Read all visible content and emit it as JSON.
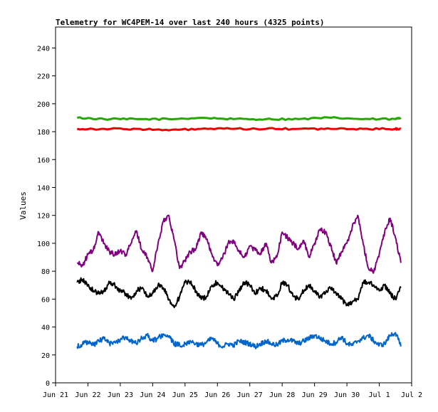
{
  "chart_data": {
    "type": "line",
    "title": "Telemetry for WC4PEM-14 over last 240 hours (4325 points)",
    "xlabel": "",
    "ylabel": "Values",
    "ylim": [
      0,
      255
    ],
    "yticks": [
      0,
      20,
      40,
      60,
      80,
      100,
      120,
      140,
      160,
      180,
      200,
      220,
      240
    ],
    "x_range": [
      "2023-06-21",
      "2023-07-02"
    ],
    "xticks": [
      {
        "date": "2023-06-21",
        "label": "Jun 21"
      },
      {
        "date": "2023-06-22",
        "label": "Jun 22"
      },
      {
        "date": "2023-06-23",
        "label": "Jun 23"
      },
      {
        "date": "2023-06-24",
        "label": "Jun 24"
      },
      {
        "date": "2023-06-25",
        "label": "Jun 25"
      },
      {
        "date": "2023-06-26",
        "label": "Jun 26"
      },
      {
        "date": "2023-06-27",
        "label": "Jun 27"
      },
      {
        "date": "2023-06-28",
        "label": "Jun 28"
      },
      {
        "date": "2023-06-29",
        "label": "Jun 29"
      },
      {
        "date": "2023-06-30",
        "label": "Jun 30"
      },
      {
        "date": "2023-07-01",
        "label": "Jul 1"
      },
      {
        "date": "2023-07-02",
        "label": "Jul 2"
      }
    ],
    "grid": false,
    "legend": "none",
    "series": [
      {
        "color": "#22aa00",
        "x": [
          "2023-06-21T16:00",
          "2023-06-22T12:00",
          "2023-06-23T12:00",
          "2023-06-24T12:00",
          "2023-06-25T12:00",
          "2023-06-26T12:00",
          "2023-06-27T12:00",
          "2023-06-28T12:00",
          "2023-06-29T12:00",
          "2023-06-30T12:00",
          "2023-07-01T12:00",
          "2023-07-01T16:00"
        ],
        "y": [
          190,
          189,
          189,
          189,
          190,
          189,
          189,
          189,
          190,
          189,
          189,
          190
        ]
      },
      {
        "color": "#ee0000",
        "x": [
          "2023-06-21T16:00",
          "2023-06-22T12:00",
          "2023-06-23T12:00",
          "2023-06-24T12:00",
          "2023-06-25T12:00",
          "2023-06-26T12:00",
          "2023-06-27T12:00",
          "2023-06-28T12:00",
          "2023-06-29T12:00",
          "2023-06-30T12:00",
          "2023-07-01T12:00",
          "2023-07-01T16:00"
        ],
        "y": [
          182,
          182,
          182,
          181,
          182,
          182,
          182,
          182,
          182,
          182,
          182,
          182
        ]
      },
      {
        "color": "#800080",
        "x": [
          "2023-06-21T16:00",
          "2023-06-21T20:00",
          "2023-06-22T00:00",
          "2023-06-22T04:00",
          "2023-06-22T08:00",
          "2023-06-22T12:00",
          "2023-06-22T16:00",
          "2023-06-22T20:00",
          "2023-06-23T00:00",
          "2023-06-23T04:00",
          "2023-06-23T08:00",
          "2023-06-23T12:00",
          "2023-06-23T16:00",
          "2023-06-23T20:00",
          "2023-06-24T00:00",
          "2023-06-24T04:00",
          "2023-06-24T08:00",
          "2023-06-24T12:00",
          "2023-06-24T16:00",
          "2023-06-24T20:00",
          "2023-06-25T00:00",
          "2023-06-25T04:00",
          "2023-06-25T08:00",
          "2023-06-25T12:00",
          "2023-06-25T16:00",
          "2023-06-25T20:00",
          "2023-06-26T00:00",
          "2023-06-26T04:00",
          "2023-06-26T08:00",
          "2023-06-26T12:00",
          "2023-06-26T16:00",
          "2023-06-26T20:00",
          "2023-06-27T00:00",
          "2023-06-27T04:00",
          "2023-06-27T08:00",
          "2023-06-27T12:00",
          "2023-06-27T16:00",
          "2023-06-27T20:00",
          "2023-06-28T00:00",
          "2023-06-28T04:00",
          "2023-06-28T08:00",
          "2023-06-28T12:00",
          "2023-06-28T16:00",
          "2023-06-28T20:00",
          "2023-06-29T00:00",
          "2023-06-29T04:00",
          "2023-06-29T08:00",
          "2023-06-29T12:00",
          "2023-06-29T16:00",
          "2023-06-29T20:00",
          "2023-06-30T00:00",
          "2023-06-30T04:00",
          "2023-06-30T08:00",
          "2023-06-30T12:00",
          "2023-06-30T16:00",
          "2023-06-30T20:00",
          "2023-07-01T00:00",
          "2023-07-01T04:00",
          "2023-07-01T08:00",
          "2023-07-01T12:00",
          "2023-07-01T16:00"
        ],
        "y": [
          86,
          84,
          92,
          95,
          108,
          100,
          94,
          92,
          95,
          92,
          100,
          109,
          95,
          90,
          80,
          100,
          116,
          120,
          102,
          82,
          88,
          94,
          96,
          108,
          103,
          92,
          84,
          90,
          100,
          102,
          94,
          90,
          98,
          95,
          93,
          100,
          86,
          90,
          108,
          104,
          100,
          96,
          102,
          90,
          100,
          110,
          108,
          98,
          86,
          94,
          100,
          112,
          120,
          100,
          82,
          80,
          92,
          108,
          118,
          104,
          86
        ]
      },
      {
        "color": "#000000",
        "x": [
          "2023-06-21T16:00",
          "2023-06-21T20:00",
          "2023-06-22T00:00",
          "2023-06-22T04:00",
          "2023-06-22T08:00",
          "2023-06-22T12:00",
          "2023-06-22T16:00",
          "2023-06-22T20:00",
          "2023-06-23T00:00",
          "2023-06-23T04:00",
          "2023-06-23T08:00",
          "2023-06-23T12:00",
          "2023-06-23T16:00",
          "2023-06-23T20:00",
          "2023-06-24T00:00",
          "2023-06-24T04:00",
          "2023-06-24T08:00",
          "2023-06-24T12:00",
          "2023-06-24T16:00",
          "2023-06-24T20:00",
          "2023-06-25T00:00",
          "2023-06-25T04:00",
          "2023-06-25T08:00",
          "2023-06-25T12:00",
          "2023-06-25T16:00",
          "2023-06-25T20:00",
          "2023-06-26T00:00",
          "2023-06-26T04:00",
          "2023-06-26T08:00",
          "2023-06-26T12:00",
          "2023-06-26T16:00",
          "2023-06-26T20:00",
          "2023-06-27T00:00",
          "2023-06-27T04:00",
          "2023-06-27T08:00",
          "2023-06-27T12:00",
          "2023-06-27T16:00",
          "2023-06-27T20:00",
          "2023-06-28T00:00",
          "2023-06-28T04:00",
          "2023-06-28T08:00",
          "2023-06-28T12:00",
          "2023-06-28T16:00",
          "2023-06-28T20:00",
          "2023-06-29T00:00",
          "2023-06-29T04:00",
          "2023-06-29T08:00",
          "2023-06-29T12:00",
          "2023-06-29T16:00",
          "2023-06-29T20:00",
          "2023-06-30T00:00",
          "2023-06-30T04:00",
          "2023-06-30T08:00",
          "2023-06-30T12:00",
          "2023-06-30T16:00",
          "2023-06-30T20:00",
          "2023-07-01T00:00",
          "2023-07-01T04:00",
          "2023-07-01T08:00",
          "2023-07-01T12:00",
          "2023-07-01T16:00"
        ],
        "y": [
          72,
          74,
          70,
          66,
          64,
          66,
          72,
          70,
          66,
          64,
          60,
          66,
          68,
          62,
          64,
          70,
          68,
          60,
          54,
          62,
          72,
          72,
          66,
          60,
          62,
          70,
          72,
          68,
          64,
          60,
          66,
          72,
          70,
          64,
          68,
          66,
          60,
          62,
          72,
          70,
          62,
          60,
          66,
          70,
          66,
          62,
          64,
          68,
          64,
          60,
          56,
          58,
          60,
          72,
          72,
          70,
          66,
          70,
          64,
          60,
          68
        ]
      },
      {
        "color": "#0066cc",
        "x": [
          "2023-06-21T16:00",
          "2023-06-21T20:00",
          "2023-06-22T00:00",
          "2023-06-22T04:00",
          "2023-06-22T08:00",
          "2023-06-22T12:00",
          "2023-06-22T16:00",
          "2023-06-22T20:00",
          "2023-06-23T00:00",
          "2023-06-23T04:00",
          "2023-06-23T08:00",
          "2023-06-23T12:00",
          "2023-06-23T16:00",
          "2023-06-23T20:00",
          "2023-06-24T00:00",
          "2023-06-24T04:00",
          "2023-06-24T08:00",
          "2023-06-24T12:00",
          "2023-06-24T16:00",
          "2023-06-24T20:00",
          "2023-06-25T00:00",
          "2023-06-25T04:00",
          "2023-06-25T08:00",
          "2023-06-25T12:00",
          "2023-06-25T16:00",
          "2023-06-25T20:00",
          "2023-06-26T00:00",
          "2023-06-26T04:00",
          "2023-06-26T08:00",
          "2023-06-26T12:00",
          "2023-06-26T16:00",
          "2023-06-26T20:00",
          "2023-06-27T00:00",
          "2023-06-27T04:00",
          "2023-06-27T08:00",
          "2023-06-27T12:00",
          "2023-06-27T16:00",
          "2023-06-27T20:00",
          "2023-06-28T00:00",
          "2023-06-28T04:00",
          "2023-06-28T08:00",
          "2023-06-28T12:00",
          "2023-06-28T16:00",
          "2023-06-28T20:00",
          "2023-06-29T00:00",
          "2023-06-29T04:00",
          "2023-06-29T08:00",
          "2023-06-29T12:00",
          "2023-06-29T16:00",
          "2023-06-29T20:00",
          "2023-06-30T00:00",
          "2023-06-30T04:00",
          "2023-06-30T08:00",
          "2023-06-30T12:00",
          "2023-06-30T16:00",
          "2023-06-30T20:00",
          "2023-07-01T00:00",
          "2023-07-01T04:00",
          "2023-07-01T08:00",
          "2023-07-01T12:00",
          "2023-07-01T16:00"
        ],
        "y": [
          26,
          28,
          29,
          27,
          30,
          32,
          28,
          29,
          31,
          33,
          30,
          28,
          32,
          34,
          30,
          32,
          35,
          33,
          28,
          27,
          28,
          30,
          28,
          27,
          29,
          32,
          28,
          26,
          28,
          27,
          30,
          29,
          28,
          26,
          28,
          30,
          28,
          27,
          30,
          31,
          30,
          28,
          30,
          32,
          34,
          32,
          30,
          28,
          29,
          33,
          28,
          27,
          30,
          32,
          34,
          30,
          27,
          28,
          34,
          36,
          26
        ]
      }
    ]
  }
}
